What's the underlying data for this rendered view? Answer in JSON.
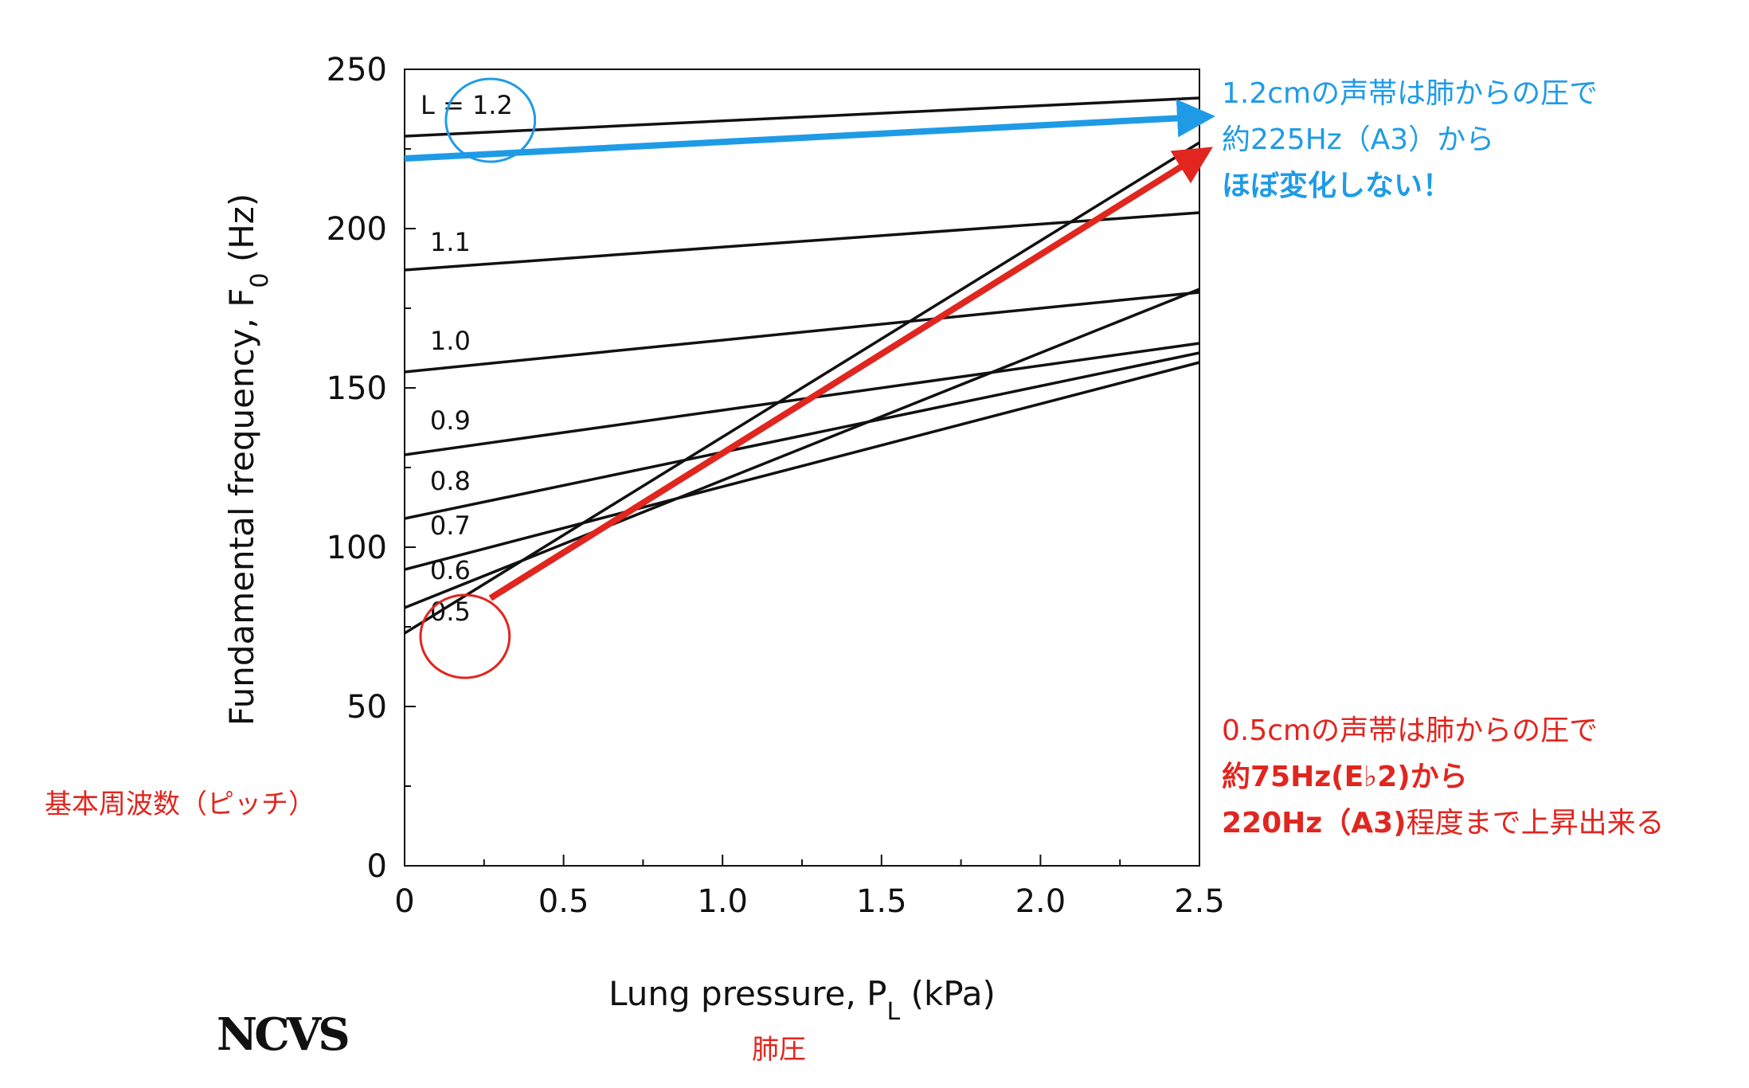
{
  "chart_data": {
    "type": "line",
    "xlabel": "Lung pressure, P_L (kPa)",
    "ylabel": "Fundamental frequency, F_0 (Hz)",
    "xlim": [
      0,
      2.5
    ],
    "ylim": [
      0,
      250
    ],
    "x_ticks": [
      "0",
      "0.5",
      "1.0",
      "1.5",
      "2.0",
      "2.5"
    ],
    "y_ticks": [
      "0",
      "50",
      "100",
      "150",
      "200",
      "250"
    ],
    "grid": false,
    "series": [
      {
        "name": "L = 1.2",
        "x": [
          0,
          2.5
        ],
        "values": [
          229,
          241
        ]
      },
      {
        "name": "1.1",
        "x": [
          0,
          2.5
        ],
        "values": [
          187,
          205
        ]
      },
      {
        "name": "1.0",
        "x": [
          0,
          2.5
        ],
        "values": [
          155,
          180
        ]
      },
      {
        "name": "0.9",
        "x": [
          0,
          2.5
        ],
        "values": [
          129,
          164
        ]
      },
      {
        "name": "0.8",
        "x": [
          0,
          2.5
        ],
        "values": [
          109,
          161
        ]
      },
      {
        "name": "0.7",
        "x": [
          0,
          2.5
        ],
        "values": [
          93,
          158
        ]
      },
      {
        "name": "0.6",
        "x": [
          0,
          2.5
        ],
        "values": [
          81,
          181
        ]
      },
      {
        "name": "0.5",
        "x": [
          0,
          2.5
        ],
        "values": [
          73,
          227
        ]
      }
    ],
    "series_label_positions": [
      {
        "name": "L = 1.2",
        "x": 0.05,
        "y": 236
      },
      {
        "name": "1.1",
        "x": 0.08,
        "y": 193
      },
      {
        "name": "1.0",
        "x": 0.08,
        "y": 162
      },
      {
        "name": "0.9",
        "x": 0.08,
        "y": 137
      },
      {
        "name": "0.8",
        "x": 0.08,
        "y": 118
      },
      {
        "name": "0.7",
        "x": 0.08,
        "y": 104
      },
      {
        "name": "0.6",
        "x": 0.08,
        "y": 90
      },
      {
        "name": "0.5",
        "x": 0.08,
        "y": 77
      }
    ],
    "annotation_arrows": [
      {
        "color": "#1f9be6",
        "from": [
          0,
          222
        ],
        "to": [
          2.5,
          235
        ]
      },
      {
        "color": "#e0261f",
        "from": [
          0.27,
          84
        ],
        "to": [
          2.5,
          223
        ]
      }
    ],
    "annotation_circles": [
      {
        "color": "#1f9be6",
        "cx": 0.27,
        "cy": 234,
        "rx": 0.14,
        "ry": 13
      },
      {
        "color": "#e0261f",
        "cx": 0.19,
        "cy": 72,
        "rx": 0.14,
        "ry": 13
      }
    ]
  },
  "annotations": {
    "blue_line1": "1.2cmの声帯は肺からの圧で",
    "blue_line2": "約225Hz（A3）から",
    "blue_line3": "ほぼ変化しない！",
    "red_line1": "0.5cmの声帯は肺からの圧で",
    "red_line2": "約75Hz(E♭2)から",
    "red_line3_bold": "220Hz（A3)",
    "red_line3_rest": "程度まで上昇出来る",
    "pitch_label": "基本周波数（ピッチ）",
    "pressure_label": "肺圧",
    "logo": "NCVS"
  },
  "colors": {
    "blue": "#1f9be6",
    "red": "#e0261f",
    "line": "#111111"
  }
}
